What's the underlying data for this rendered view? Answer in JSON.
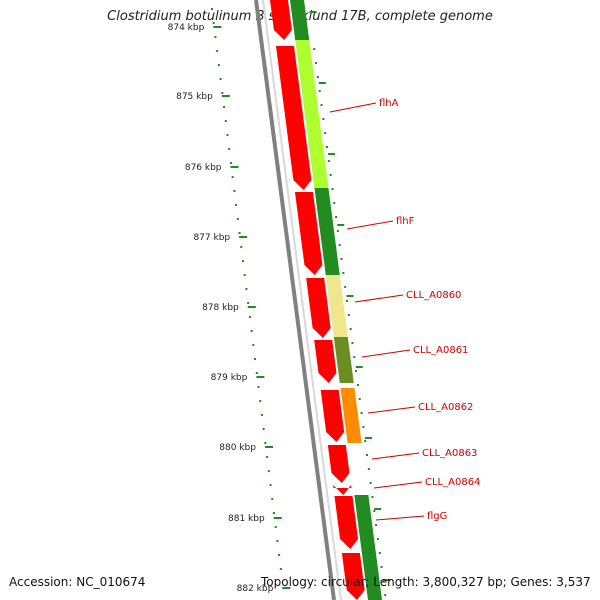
{
  "title": "Clostridium botulinum B str. Eklund 17B, complete genome",
  "footer": {
    "accession": "Accession: NC_010674",
    "summary": "Topology: circular; Length: 3,800,327 bp; Genes: 3,537"
  },
  "scale": {
    "ticks": [
      "874 kbp",
      "875 kbp",
      "876 kbp",
      "877 kbp",
      "878 kbp",
      "879 kbp",
      "880 kbp",
      "881 kbp",
      "882 kbp"
    ]
  },
  "genes": [
    {
      "label": "flhA"
    },
    {
      "label": "flhF"
    },
    {
      "label": "CLL_A0860"
    },
    {
      "label": "CLL_A0861"
    },
    {
      "label": "CLL_A0862"
    },
    {
      "label": "CLL_A0863"
    },
    {
      "label": "CLL_A0864"
    },
    {
      "label": "flgG"
    }
  ],
  "colors": {
    "cds": "#ff0000",
    "backbone": "#808080",
    "tick": "#228b22",
    "label": "#cc0000",
    "feature_dark_green": "#228b22",
    "feature_light_green": "#adff2f",
    "feature_khaki": "#f0e68c",
    "feature_olive": "#6b8e23",
    "feature_orange": "#ff8c00"
  }
}
